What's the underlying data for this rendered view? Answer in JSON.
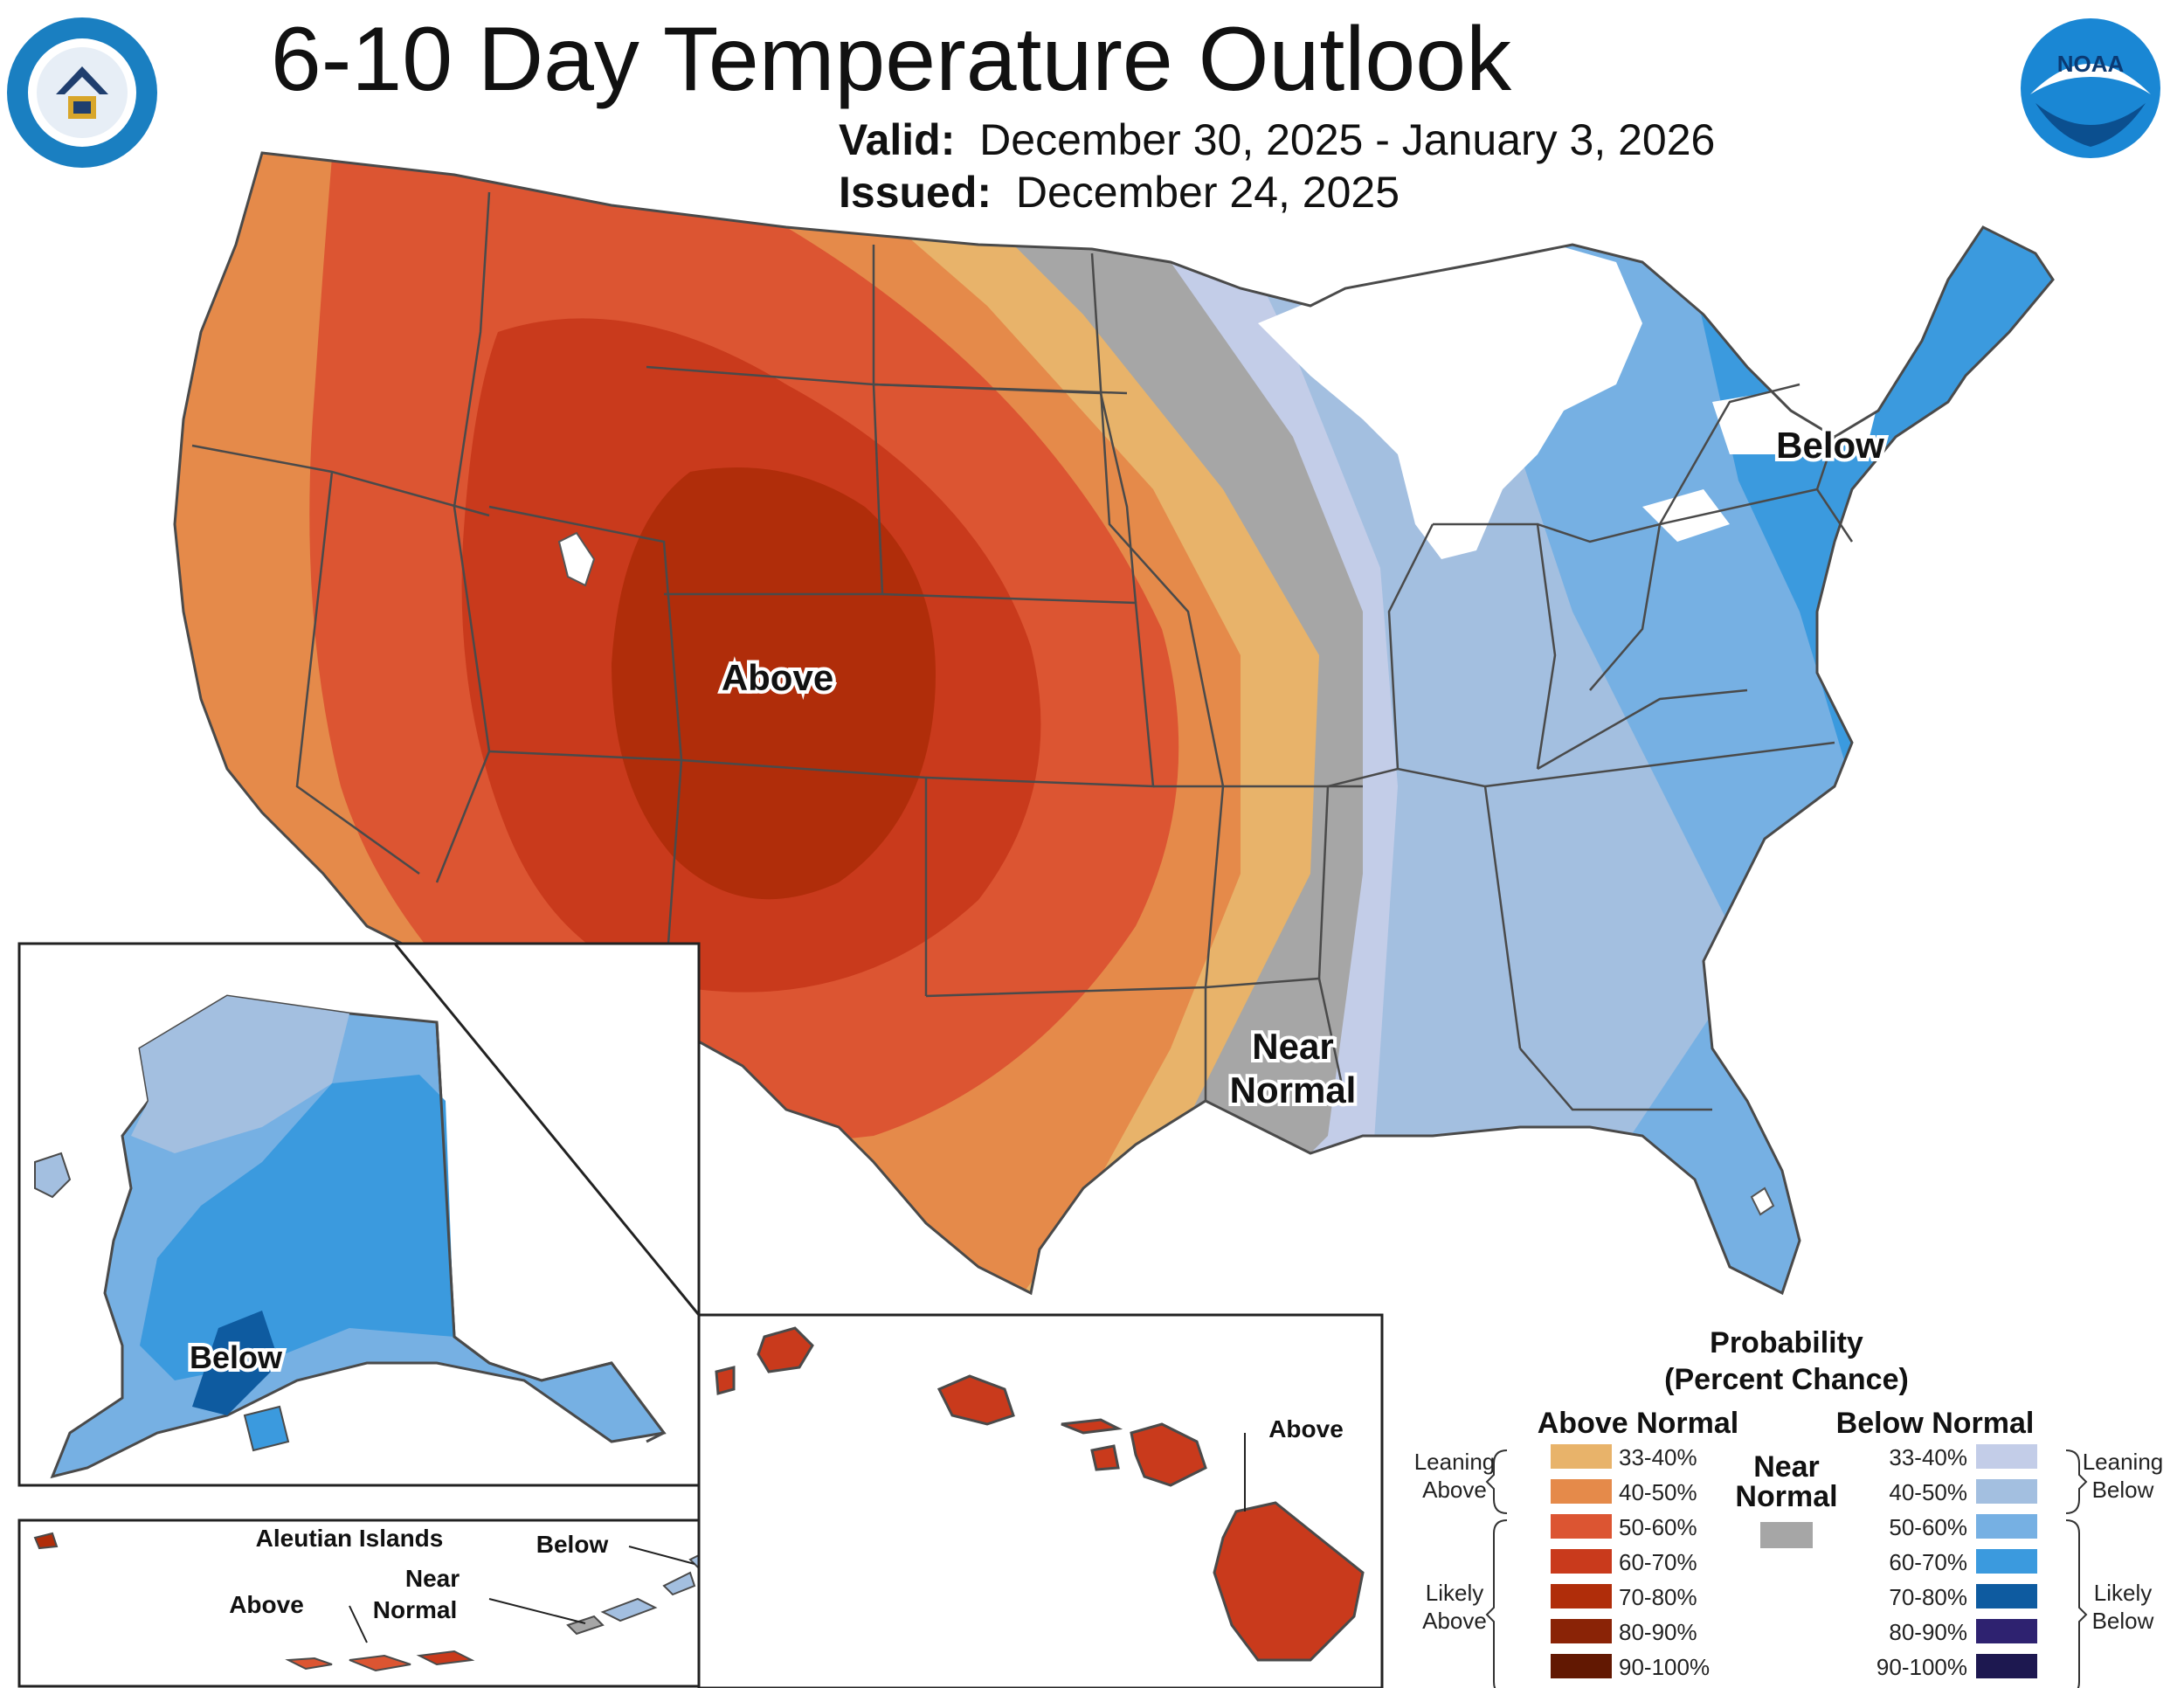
{
  "header": {
    "title": "6-10 Day Temperature Outlook",
    "valid_label": "Valid:",
    "valid_value": "December 30, 2025 - January 3, 2026",
    "issued_label": "Issued:",
    "issued_value": "December 24, 2025"
  },
  "logos": {
    "left": "department-of-commerce-seal",
    "right": "noaa-logo",
    "right_text": "NOAA"
  },
  "labels": {
    "conus_above": "Above",
    "conus_below": "Below",
    "conus_near_1": "Near",
    "conus_near_2": "Normal",
    "alaska_below": "Below",
    "aleutian_title": "Aleutian Islands",
    "aleutian_above": "Above",
    "aleutian_near_1": "Near",
    "aleutian_near_2": "Normal",
    "aleutian_below": "Below",
    "hawaii_above": "Above"
  },
  "legend": {
    "title_1": "Probability",
    "title_2": "(Percent Chance)",
    "above_header": "Above Normal",
    "below_header": "Below Normal",
    "near_1": "Near",
    "near_2": "Normal",
    "leaning_above_1": "Leaning",
    "leaning_above_2": "Above",
    "likely_above_1": "Likely",
    "likely_above_2": "Above",
    "leaning_below_1": "Leaning",
    "leaning_below_2": "Below",
    "likely_below_1": "Likely",
    "likely_below_2": "Below",
    "above": [
      {
        "range": "33-40%",
        "color": "#e8b36a"
      },
      {
        "range": "40-50%",
        "color": "#e58a4a"
      },
      {
        "range": "50-60%",
        "color": "#dc5532"
      },
      {
        "range": "60-70%",
        "color": "#c93a1c"
      },
      {
        "range": "70-80%",
        "color": "#b02d0a"
      },
      {
        "range": "80-90%",
        "color": "#8a2306"
      },
      {
        "range": "90-100%",
        "color": "#621802"
      }
    ],
    "near_color": "#a6a6a6",
    "below": [
      {
        "range": "33-40%",
        "color": "#c3cde8"
      },
      {
        "range": "40-50%",
        "color": "#a3bfe0"
      },
      {
        "range": "50-60%",
        "color": "#76b0e3"
      },
      {
        "range": "60-70%",
        "color": "#3b9ade"
      },
      {
        "range": "70-80%",
        "color": "#0e5ba0"
      },
      {
        "range": "80-90%",
        "color": "#2e2270"
      },
      {
        "range": "90-100%",
        "color": "#1d1850"
      }
    ]
  }
}
